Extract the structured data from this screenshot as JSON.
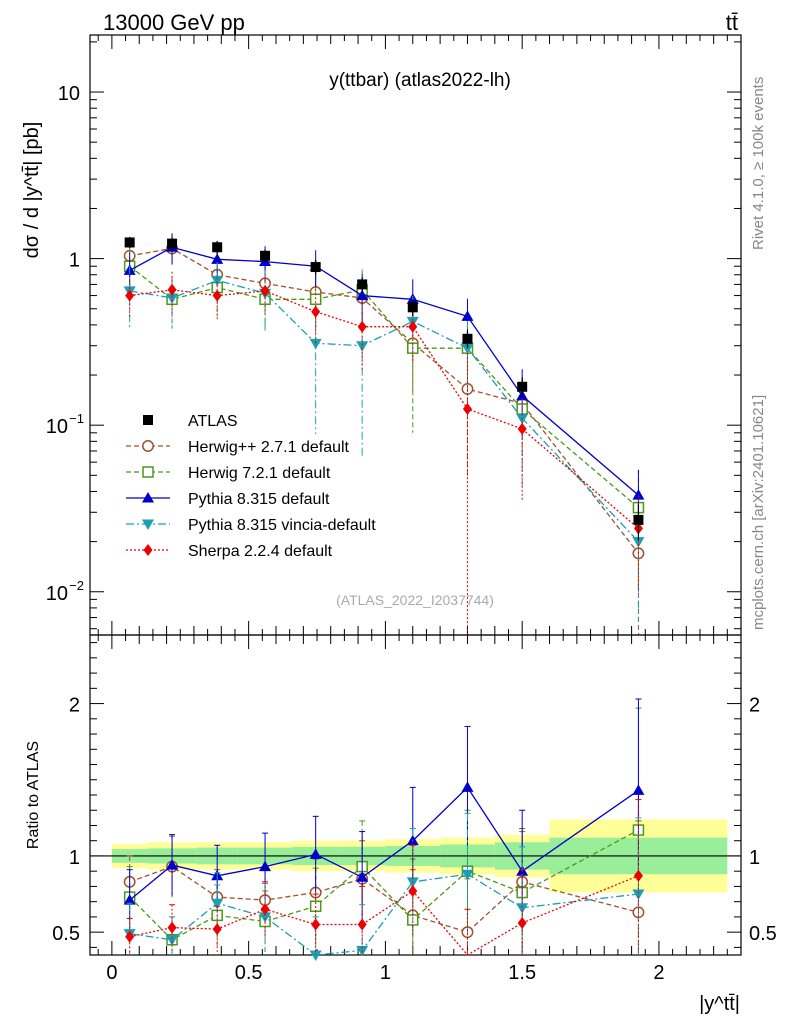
{
  "header": {
    "left": "13000 GeV pp",
    "right": "tt̄"
  },
  "side": {
    "rivet": "Rivet 4.1.0, ≥ 100k events",
    "mcplots": "mcplots.cern.ch [arXiv:2401.10621]"
  },
  "chart_data": {
    "type": "line",
    "title": "y(ttbar) (atlas2022-lh)",
    "analysis_id": "(ATLAS_2022_I2037744)",
    "xlabel": "|y^tt̄|",
    "ylabel": "dσ / d |y^tt̄| [pb]",
    "ratio_ylabel": "Ratio to ATLAS",
    "x": [
      0.065,
      0.22,
      0.385,
      0.56,
      0.745,
      0.915,
      1.1,
      1.3,
      1.5,
      1.925
    ],
    "bins": [
      [
        0,
        0.13
      ],
      [
        0.13,
        0.31
      ],
      [
        0.31,
        0.46
      ],
      [
        0.46,
        0.66
      ],
      [
        0.66,
        0.83
      ],
      [
        0.83,
        1.0
      ],
      [
        1.0,
        1.2
      ],
      [
        1.2,
        1.4
      ],
      [
        1.4,
        1.6
      ],
      [
        1.6,
        2.25
      ]
    ],
    "xlim": [
      -0.08,
      2.3
    ],
    "ylim_main": [
      0.0055,
      22
    ],
    "ylim_ratio": [
      0.35,
      2.45
    ],
    "x_ticks": [
      0,
      0.5,
      1,
      1.5,
      2
    ],
    "x_tick_labels": [
      "0",
      "0.5",
      "1",
      "1.5",
      "2"
    ],
    "main_y_ticks": [
      0.01,
      0.1,
      1,
      10
    ],
    "main_y_tick_labels": [
      "10",
      "10",
      "1",
      "10"
    ],
    "main_y_tick_exps": [
      "−2",
      "−1",
      "",
      ""
    ],
    "ratio_y_ticks": [
      0.5,
      1,
      2
    ],
    "ratio_y_tick_labels": [
      "0.5",
      "1",
      "2"
    ],
    "data": {
      "name": "ATLAS",
      "values": [
        1.25,
        1.23,
        1.17,
        1.04,
        0.89,
        0.7,
        0.51,
        0.33,
        0.17,
        0.027
      ],
      "band_inner": [
        0.045,
        0.05,
        0.055,
        0.055,
        0.06,
        0.06,
        0.065,
        0.075,
        0.09,
        0.12
      ],
      "band_outer": [
        0.08,
        0.09,
        0.09,
        0.09,
        0.1,
        0.1,
        0.11,
        0.12,
        0.14,
        0.24
      ]
    },
    "series": [
      {
        "name": "Herwig++ 2.7.1 default",
        "color": "#a0522d",
        "dash": "5,3",
        "marker": "circle-open",
        "values": [
          1.04,
          1.15,
          0.8,
          0.71,
          0.63,
          0.58,
          0.31,
          0.165,
          0.135,
          0.017
        ],
        "ratio": [
          0.83,
          0.93,
          0.73,
          0.71,
          0.76,
          0.85,
          0.61,
          0.5,
          0.83,
          0.63
        ],
        "ratio_err": [
          0.17,
          0.2,
          0.18,
          0.2,
          0.22,
          0.25,
          0.3,
          0.35,
          0.35,
          0.6
        ]
      },
      {
        "name": "Herwig 7.2.1 default",
        "color": "#4a9a1a",
        "dash": "5,3",
        "marker": "square-open",
        "values": [
          0.9,
          0.57,
          0.67,
          0.57,
          0.57,
          0.65,
          0.29,
          0.29,
          0.125,
          0.032
        ],
        "ratio": [
          0.73,
          0.45,
          0.61,
          0.57,
          0.67,
          0.93,
          0.58,
          0.9,
          0.76,
          1.17
        ],
        "ratio_err": [
          0.2,
          0.15,
          0.2,
          0.2,
          0.25,
          0.3,
          0.4,
          0.4,
          0.4,
          0.8
        ]
      },
      {
        "name": "Pythia 8.315 default",
        "color": "#0000cc",
        "dash": "",
        "marker": "triangle-up",
        "values": [
          0.85,
          1.17,
          0.99,
          0.96,
          0.9,
          0.6,
          0.57,
          0.45,
          0.15,
          0.038
        ],
        "ratio": [
          0.71,
          0.94,
          0.87,
          0.93,
          1.01,
          0.86,
          1.1,
          1.45,
          0.9,
          1.43
        ],
        "ratio_err": [
          0.2,
          0.2,
          0.2,
          0.22,
          0.25,
          0.3,
          0.35,
          0.4,
          0.4,
          0.6
        ]
      },
      {
        "name": "Pythia 8.315 vincia-default",
        "color": "#1a9fb5",
        "dash": "8,3,2,3",
        "marker": "triangle-down",
        "values": [
          0.64,
          0.58,
          0.74,
          0.62,
          0.31,
          0.3,
          0.42,
          0.29,
          0.11,
          0.02
        ],
        "ratio": [
          0.49,
          0.45,
          0.69,
          0.6,
          0.35,
          0.38,
          0.83,
          0.88,
          0.66,
          0.75
        ],
        "ratio_err": [
          0.2,
          0.15,
          0.2,
          0.22,
          0.25,
          0.3,
          0.35,
          0.4,
          0.4,
          0.5
        ]
      },
      {
        "name": "Sherpa 2.2.4 default",
        "color": "#ee0000",
        "dash": "2,2",
        "marker": "diamond",
        "values": [
          0.6,
          0.65,
          0.6,
          0.64,
          0.48,
          0.39,
          0.39,
          0.125,
          0.095,
          0.024
        ],
        "ratio": [
          0.47,
          0.53,
          0.52,
          0.65,
          0.55,
          0.55,
          0.77,
          0.3,
          0.56,
          0.87
        ],
        "ratio_err": [
          0.12,
          0.15,
          0.15,
          0.18,
          0.2,
          0.25,
          0.3,
          0.35,
          0.35,
          0.5
        ]
      }
    ]
  }
}
